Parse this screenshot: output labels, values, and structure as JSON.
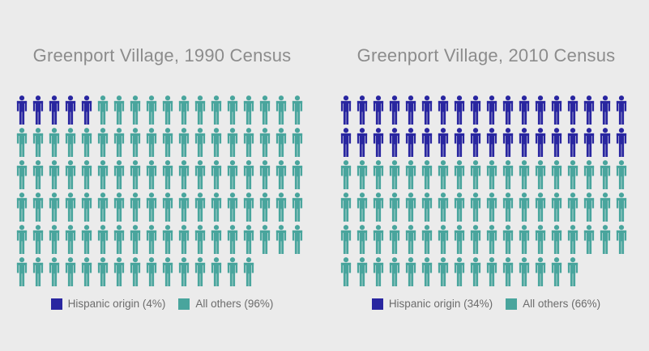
{
  "page": {
    "background_color": "#EBEBEB",
    "title_color": "#8C8C8C",
    "legend_text_color": "#6C6C6C"
  },
  "chart_data": [
    {
      "type": "pictograph",
      "title": "Greenport Village, 1990 Census",
      "rows": 6,
      "row_lengths": [
        18,
        18,
        18,
        18,
        18,
        15
      ],
      "total_icons": 105,
      "series": [
        {
          "name": "Hispanic origin",
          "pct_label": "4%",
          "icons": 5,
          "color": "#2926A0",
          "legend_label": "Hispanic origin (4%)"
        },
        {
          "name": "All others",
          "pct_label": "96%",
          "icons": 100,
          "color": "#49A59D",
          "legend_label": "All others (96%)"
        }
      ],
      "legend_position": "bottom-center"
    },
    {
      "type": "pictograph",
      "title": "Greenport Village, 2010 Census",
      "rows": 6,
      "row_lengths": [
        18,
        18,
        18,
        18,
        18,
        15
      ],
      "total_icons": 105,
      "series": [
        {
          "name": "Hispanic origin",
          "pct_label": "34%",
          "icons": 36,
          "color": "#2926A0",
          "legend_label": "Hispanic origin (34%)"
        },
        {
          "name": "All others",
          "pct_label": "66%",
          "icons": 69,
          "color": "#49A59D",
          "legend_label": "All others (66%)"
        }
      ],
      "legend_position": "bottom-center"
    }
  ]
}
